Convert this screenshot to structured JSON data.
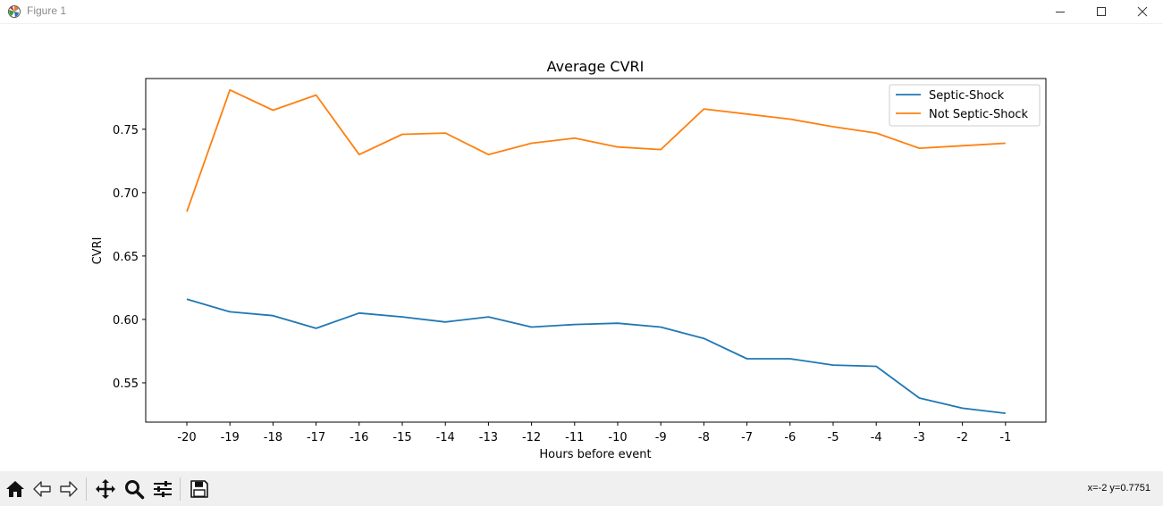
{
  "window": {
    "title": "Figure 1",
    "minimize_icon": "minimize-icon",
    "maximize_icon": "maximize-icon",
    "close_icon": "close-icon"
  },
  "toolbar": {
    "buttons": [
      "home-icon",
      "back-arrow-icon",
      "forward-arrow-icon",
      "pan-icon",
      "zoom-icon",
      "configure-subplots-icon",
      "save-icon"
    ],
    "coordinates": "x=-2 y=0.7751"
  },
  "chart_data": {
    "type": "line",
    "title": "Average CVRI",
    "xlabel": "Hours before event",
    "ylabel": "CVRI",
    "categories": [
      "-20",
      "-19",
      "-18",
      "-17",
      "-16",
      "-15",
      "-14",
      "-13",
      "-12",
      "-11",
      "-10",
      "-9",
      "-8",
      "-7",
      "-6",
      "-5",
      "-4",
      "-3",
      "-2",
      "-1"
    ],
    "yticks": [
      "0.55",
      "0.60",
      "0.65",
      "0.70",
      "0.75"
    ],
    "ylim": [
      0.519,
      0.79
    ],
    "grid": false,
    "legend_position": "top-right",
    "series": [
      {
        "name": "Septic-Shock",
        "color": "#1f77b4",
        "values": [
          0.616,
          0.606,
          0.603,
          0.593,
          0.605,
          0.602,
          0.598,
          0.602,
          0.594,
          0.596,
          0.597,
          0.594,
          0.585,
          0.569,
          0.569,
          0.564,
          0.563,
          0.538,
          0.53,
          0.526
        ]
      },
      {
        "name": "Not Septic-Shock",
        "color": "#ff7f0e",
        "values": [
          0.685,
          0.781,
          0.765,
          0.777,
          0.73,
          0.746,
          0.747,
          0.73,
          0.739,
          0.743,
          0.736,
          0.734,
          0.766,
          0.762,
          0.758,
          0.752,
          0.747,
          0.735,
          0.737,
          0.739
        ]
      }
    ]
  }
}
